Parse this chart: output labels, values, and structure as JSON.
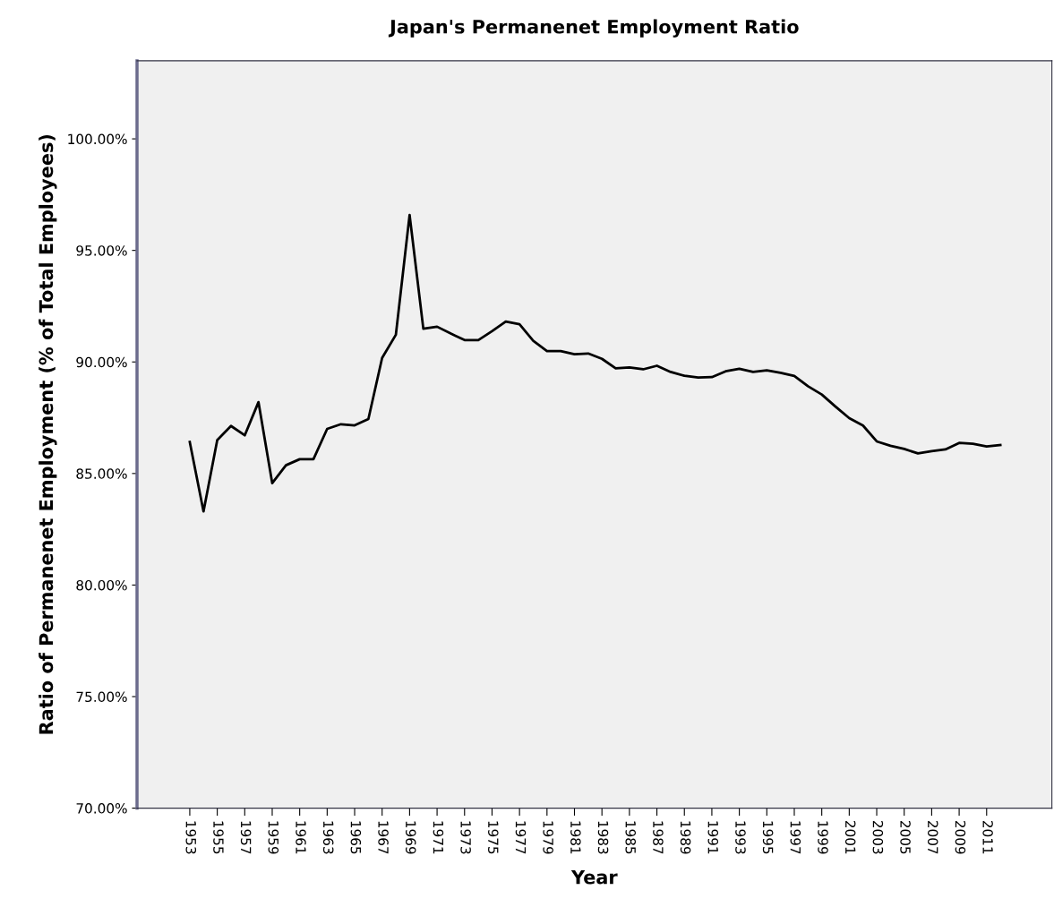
{
  "chart_data": {
    "type": "line",
    "title": "Japan's Permanenet Employment Ratio",
    "xlabel": "Year",
    "ylabel": "Ratio of Permanenet Employment (% of Total Employees)",
    "categories": [
      "1953",
      null,
      "1955",
      null,
      "1957",
      null,
      "1959",
      null,
      "1961",
      null,
      "1963",
      null,
      "1965",
      null,
      "1967",
      null,
      "1969",
      null,
      "1971",
      null,
      "1973",
      null,
      "1975",
      null,
      "1977",
      null,
      "1979",
      null,
      "1981",
      null,
      "1983",
      null,
      "1985",
      null,
      "1987",
      null,
      "1989",
      null,
      "1991",
      null,
      "1993",
      null,
      "1995",
      null,
      "1997",
      null,
      "1999",
      null,
      "2001",
      null,
      "2003",
      null,
      "2005",
      null,
      "2007",
      null,
      "2009",
      null,
      "2011",
      null
    ],
    "series": [
      {
        "color": "#000000",
        "values": [
          86.41,
          83.3,
          86.5,
          87.13,
          86.71,
          88.2,
          84.57,
          85.37,
          85.64,
          85.64,
          87.0,
          87.21,
          87.16,
          87.44,
          90.18,
          91.22,
          96.59,
          91.49,
          91.58,
          91.27,
          90.98,
          90.98,
          91.38,
          91.81,
          91.69,
          90.95,
          90.49,
          90.49,
          90.35,
          90.38,
          90.14,
          89.71,
          89.75,
          89.67,
          89.83,
          89.55,
          89.38,
          89.3,
          89.32,
          89.58,
          89.69,
          89.55,
          89.62,
          89.51,
          89.37,
          88.91,
          88.54,
          88.0,
          87.48,
          87.15,
          86.44,
          86.24,
          86.1,
          85.9,
          86.0,
          86.08,
          86.37,
          86.33,
          86.21,
          86.28
        ]
      }
    ],
    "ylim": [
      70,
      103.5
    ],
    "yticks": [
      {
        "value": 70,
        "label": "70.00%"
      },
      {
        "value": 75,
        "label": "75.00%"
      },
      {
        "value": 80,
        "label": "80.00%"
      },
      {
        "value": 85,
        "label": "85.00%"
      },
      {
        "value": 90,
        "label": "90.00%"
      },
      {
        "value": 95,
        "label": "95.00%"
      },
      {
        "value": 100,
        "label": "100.00%"
      }
    ],
    "grid": false,
    "legend": false,
    "marker": "none",
    "line_style": "solid"
  }
}
